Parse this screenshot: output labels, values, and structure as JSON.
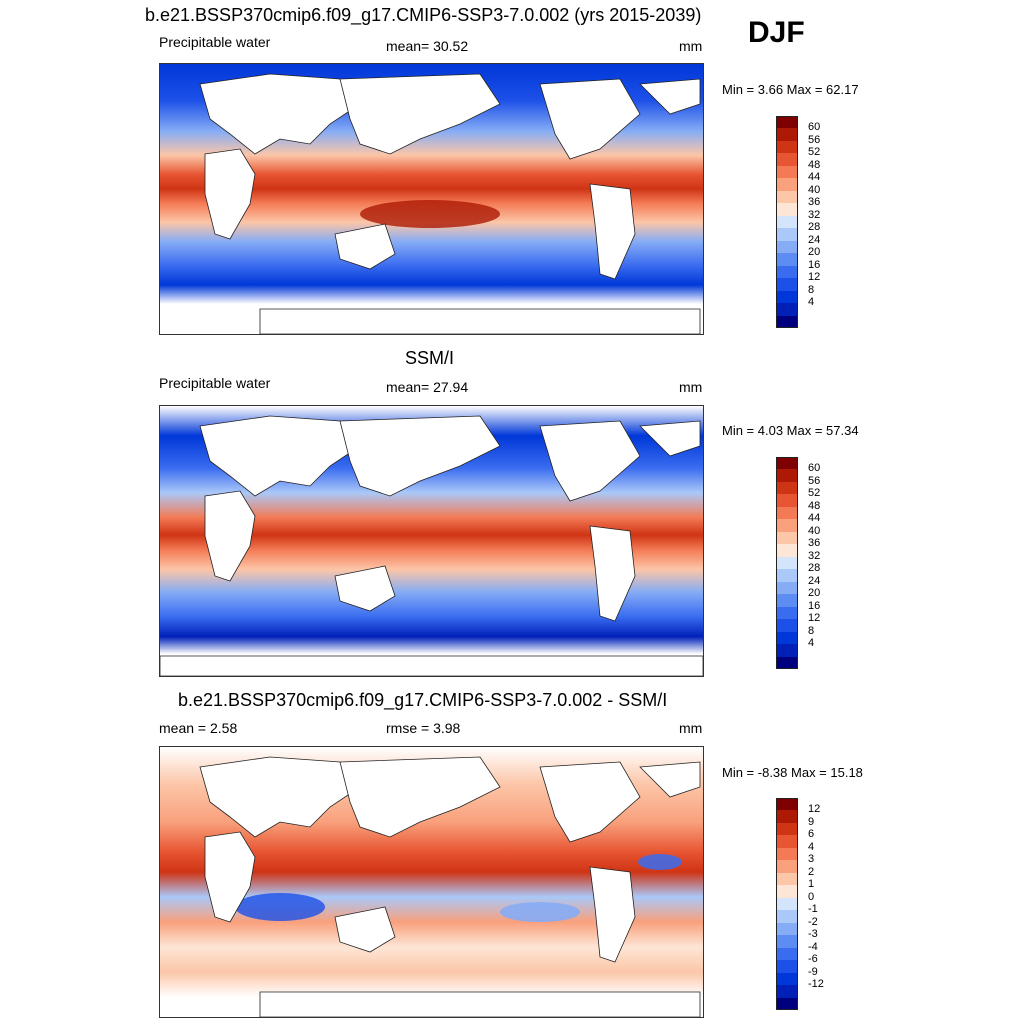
{
  "season": "DJF",
  "panels": [
    {
      "heading": "b.e21.BSSP370cmip6.f09_g17.CMIP6-SSP3-7.0.002 (yrs 2015-2039)",
      "left_label": "Precipitable water",
      "center_label": "mean=  30.52",
      "units": "mm",
      "minmax": "Min =   3.66 Max =  62.17",
      "colorbar": {
        "colors": [
          "#00007f",
          "#0020b8",
          "#0037d8",
          "#1c50e8",
          "#3a6cf0",
          "#5d8cf3",
          "#86acf5",
          "#aac8f8",
          "#d4e5fb",
          "#fde6d6",
          "#fcc6a8",
          "#f9a07c",
          "#f47a55",
          "#e75532",
          "#cf3414",
          "#ad1904",
          "#7f0000"
        ],
        "labels": [
          "60",
          "56",
          "52",
          "48",
          "44",
          "40",
          "36",
          "32",
          "28",
          "24",
          "20",
          "16",
          "12",
          "8",
          "4"
        ],
        "kind": "seq"
      }
    },
    {
      "heading": "SSM/I",
      "left_label": "Precipitable water",
      "center_label": "mean=  27.94",
      "units": "mm",
      "minmax": "Min =   4.03 Max =  57.34",
      "colorbar": {
        "colors": [
          "#00007f",
          "#0020b8",
          "#0037d8",
          "#1c50e8",
          "#3a6cf0",
          "#5d8cf3",
          "#86acf5",
          "#aac8f8",
          "#d4e5fb",
          "#fde6d6",
          "#fcc6a8",
          "#f9a07c",
          "#f47a55",
          "#e75532",
          "#cf3414",
          "#ad1904",
          "#7f0000"
        ],
        "labels": [
          "60",
          "56",
          "52",
          "48",
          "44",
          "40",
          "36",
          "32",
          "28",
          "24",
          "20",
          "16",
          "12",
          "8",
          "4"
        ],
        "kind": "seq"
      }
    },
    {
      "heading": "b.e21.BSSP370cmip6.f09_g17.CMIP6-SSP3-7.0.002 - SSM/I",
      "left_label": "mean =   2.58",
      "center_label": "rmse =   3.98",
      "units": "mm",
      "minmax": "Min =  -8.38 Max =  15.18",
      "colorbar": {
        "colors": [
          "#00007f",
          "#0020b8",
          "#0037d8",
          "#1c50e8",
          "#3a6cf0",
          "#5d8cf3",
          "#86acf5",
          "#aac8f8",
          "#d4e5fb",
          "#fde6d6",
          "#fcc6a8",
          "#f9a07c",
          "#f47a55",
          "#e75532",
          "#cf3414",
          "#ad1904",
          "#7f0000"
        ],
        "labels": [
          "12",
          "9",
          "6",
          "4",
          "3",
          "2",
          "1",
          "0",
          "-1",
          "-2",
          "-3",
          "-4",
          "-6",
          "-9",
          "-12"
        ],
        "kind": "diff"
      }
    }
  ]
}
